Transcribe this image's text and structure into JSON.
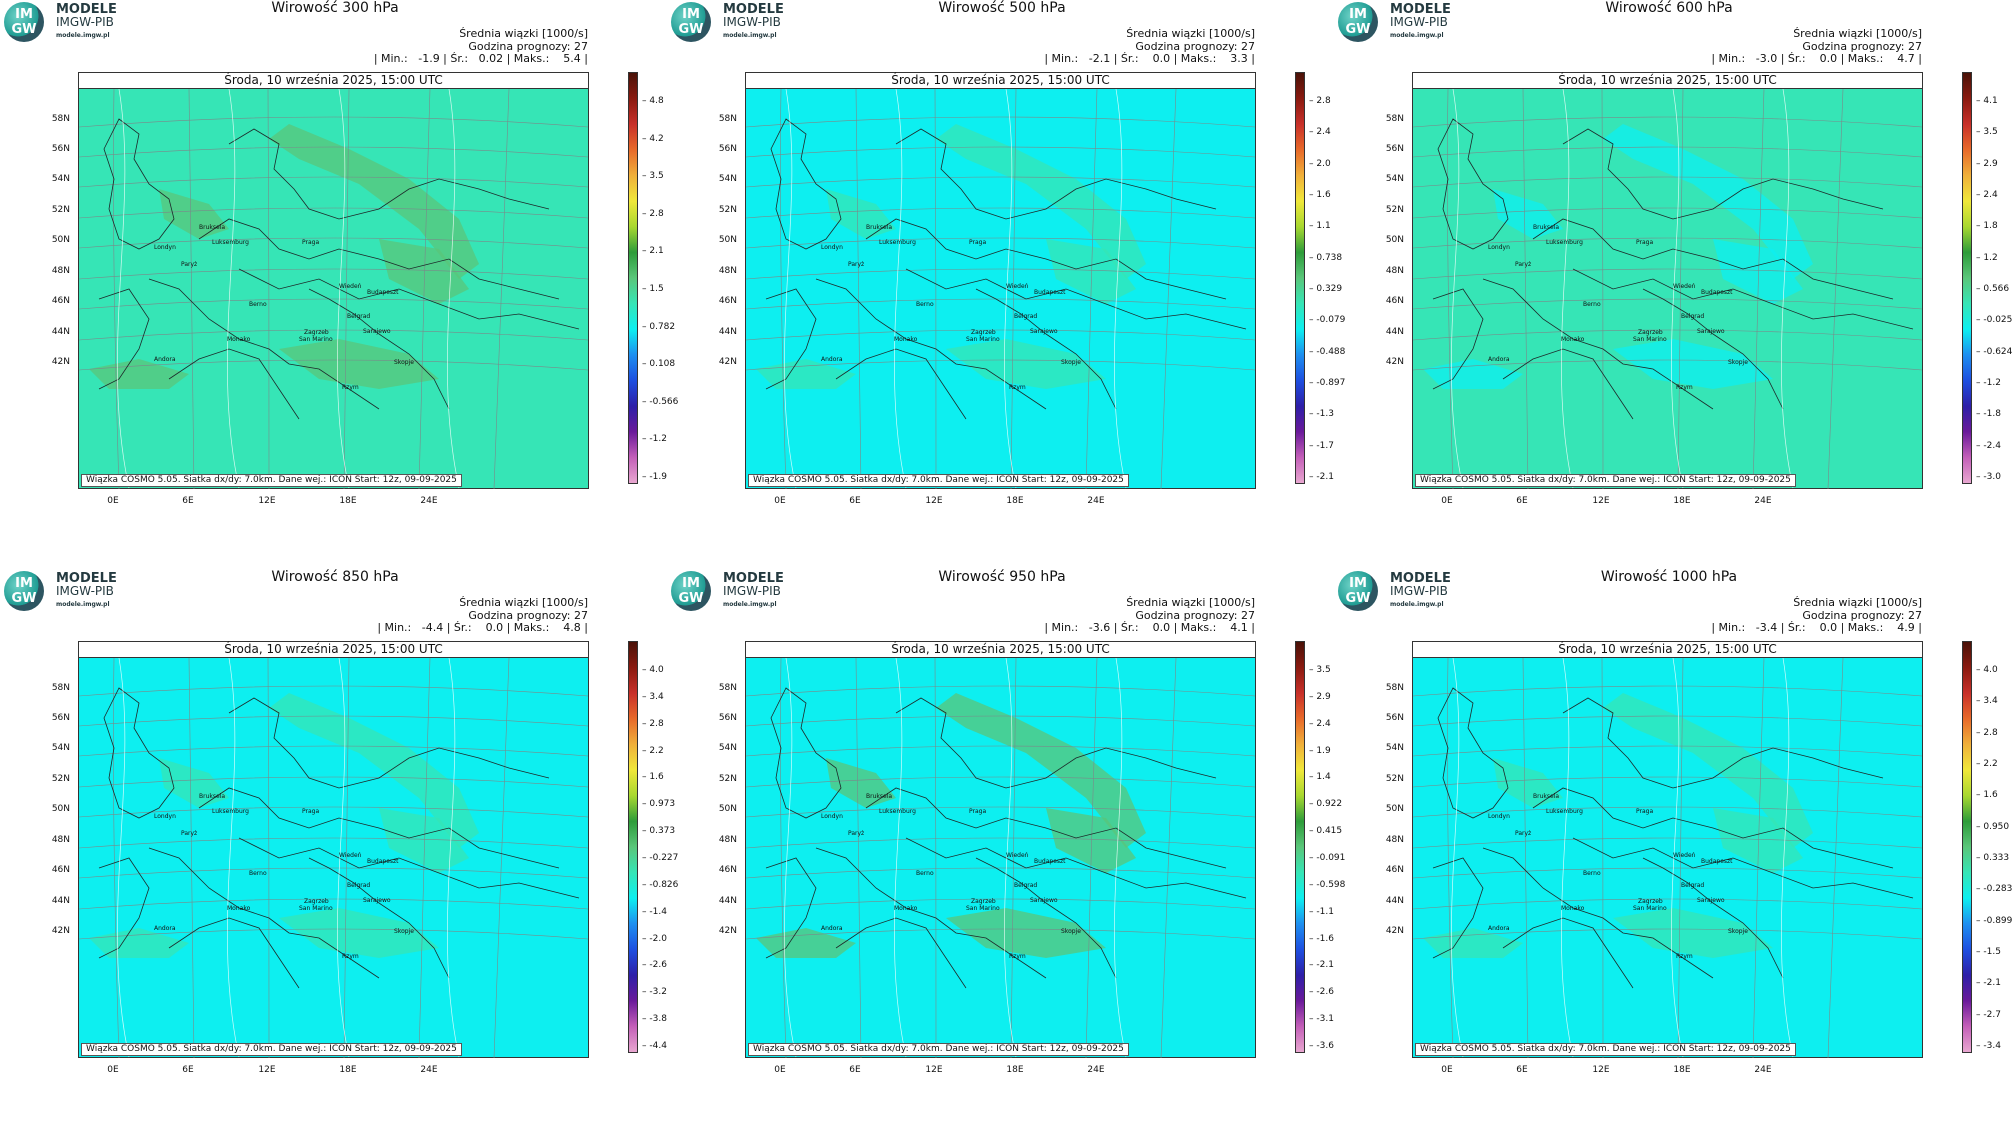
{
  "panels": [
    {
      "title": "Wirowość 300 hPa",
      "mean_label": "Średnia wiązki [1000/s]",
      "hour_label": "Godzina prognozy: 27",
      "stats": "| Min.:   -1.9 | Śr.:   0.02 | Maks.:    5.4 |",
      "date": "Środa, 10 września 2025, 15:00 UTC",
      "colorbar_ticks": [
        "4.8",
        "4.2",
        "3.5",
        "2.8",
        "2.1",
        "1.5",
        "0.782",
        "0.108",
        "-0.566",
        "-1.2",
        "-1.9"
      ],
      "colorbar_range": [
        -1.9,
        5.4
      ],
      "base_color": "#36e5b6",
      "patch_color": "#5ac67a"
    },
    {
      "title": "Wirowość 500 hPa",
      "mean_label": "Średnia wiązki [1000/s]",
      "hour_label": "Godzina prognozy: 27",
      "stats": "| Min.:   -2.1 | Śr.:    0.0 | Maks.:    3.3 |",
      "date": "Środa, 10 września 2025, 15:00 UTC",
      "colorbar_ticks": [
        "2.8",
        "2.4",
        "2.0",
        "1.6",
        "1.1",
        "0.738",
        "0.329",
        "-0.079",
        "-0.488",
        "-0.897",
        "-1.3",
        "-1.7",
        "-2.1"
      ],
      "colorbar_range": [
        -2.1,
        3.3
      ],
      "base_color": "#0deff0",
      "patch_color": "#36e5b6"
    },
    {
      "title": "Wirowość 600 hPa",
      "mean_label": "Średnia wiązki [1000/s]",
      "hour_label": "Godzina prognozy: 27",
      "stats": "| Min.:   -3.0 | Śr.:    0.0 | Maks.:    4.7 |",
      "date": "Środa, 10 września 2025, 15:00 UTC",
      "colorbar_ticks": [
        "4.1",
        "3.5",
        "2.9",
        "2.4",
        "1.8",
        "1.2",
        "0.566",
        "-0.025",
        "-0.624",
        "-1.2",
        "-1.8",
        "-2.4",
        "-3.0"
      ],
      "colorbar_range": [
        -3.0,
        4.7
      ],
      "base_color": "#36e5b6",
      "patch_color": "#0deff0"
    },
    {
      "title": "Wirowość 850 hPa",
      "mean_label": "Średnia wiązki [1000/s]",
      "hour_label": "Godzina prognozy: 27",
      "stats": "| Min.:   -4.4 | Śr.:    0.0 | Maks.:    4.8 |",
      "date": "Środa, 10 września 2025, 15:00 UTC",
      "colorbar_ticks": [
        "4.0",
        "3.4",
        "2.8",
        "2.2",
        "1.6",
        "0.973",
        "0.373",
        "-0.227",
        "-0.826",
        "-1.4",
        "-2.0",
        "-2.6",
        "-3.2",
        "-3.8",
        "-4.4"
      ],
      "colorbar_range": [
        -4.4,
        4.8
      ],
      "base_color": "#0deff0",
      "patch_color": "#36e5b6"
    },
    {
      "title": "Wirowość 950 hPa",
      "mean_label": "Średnia wiązki [1000/s]",
      "hour_label": "Godzina prognozy: 27",
      "stats": "| Min.:   -3.6 | Śr.:    0.0 | Maks.:    4.1 |",
      "date": "Środa, 10 września 2025, 15:00 UTC",
      "colorbar_ticks": [
        "3.5",
        "2.9",
        "2.4",
        "1.9",
        "1.4",
        "0.922",
        "0.415",
        "-0.091",
        "-0.598",
        "-1.1",
        "-1.6",
        "-2.1",
        "-2.6",
        "-3.1",
        "-3.6"
      ],
      "colorbar_range": [
        -3.6,
        4.1
      ],
      "base_color": "#0deff0",
      "patch_color": "#5ac67a"
    },
    {
      "title": "Wirowość 1000 hPa",
      "mean_label": "Średnia wiązki [1000/s]",
      "hour_label": "Godzina prognozy: 27",
      "stats": "| Min.:   -3.4 | Śr.:    0.0 | Maks.:    4.9 |",
      "date": "Środa, 10 września 2025, 15:00 UTC",
      "colorbar_ticks": [
        "4.0",
        "3.4",
        "2.8",
        "2.2",
        "1.6",
        "0.950",
        "0.333",
        "-0.283",
        "-0.899",
        "-1.5",
        "-2.1",
        "-2.7",
        "-3.4"
      ],
      "colorbar_range": [
        -3.4,
        4.9
      ],
      "base_color": "#0deff0",
      "patch_color": "#36e5b6"
    }
  ],
  "brand": {
    "name": "MODELE",
    "org": "IMGW-PIB",
    "url": "modele.imgw.pl",
    "logo_text_1": "IM",
    "logo_text_2": "GW"
  },
  "footer": "Wiązka  COSMO  5.05.  Siatka  dx/dy:  7.0km.  Dane  wej.:  ICON  Start:  12z,  09-09-2025",
  "lat_labels": [
    "58N",
    "56N",
    "54N",
    "52N",
    "50N",
    "48N",
    "46N",
    "44N",
    "42N"
  ],
  "lon_labels": [
    "0E",
    "6E",
    "12E",
    "18E",
    "24E"
  ],
  "cities": [
    "Londyn",
    "Bruksela",
    "Luksemburg",
    "Paryż",
    "Praga",
    "Wiedeń",
    "Budapeszt",
    "Berno",
    "Zagrzeb",
    "Belgrad",
    "Monako",
    "San Marino",
    "Sarajewo",
    "Andora",
    "Skopje",
    "Rzym"
  ],
  "colorbar_colors": [
    "#e8a7d0",
    "#c35fb8",
    "#6a1a9a",
    "#2d1fa8",
    "#1e4fe0",
    "#1e8ff0",
    "#0deff0",
    "#36e5b6",
    "#5ac67a",
    "#2e9c3a",
    "#a8d830",
    "#f0e83a",
    "#f0b03a",
    "#e86a2a",
    "#c8302a",
    "#8a1a10",
    "#4a1208"
  ]
}
